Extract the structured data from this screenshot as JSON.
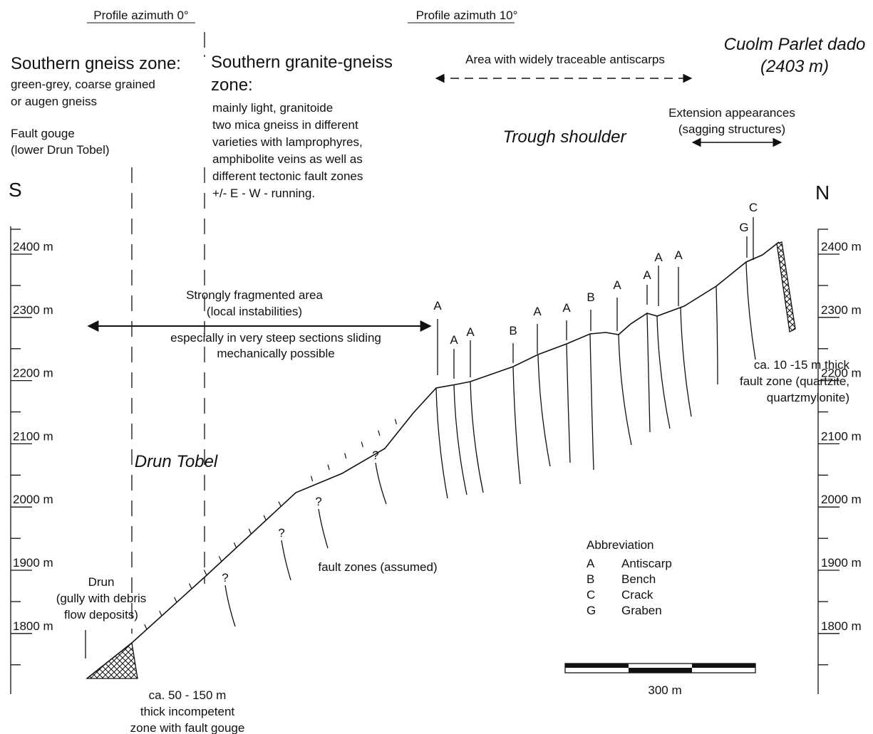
{
  "header": {
    "profile_left": "Profile azimuth 0°",
    "profile_right": "Profile azimuth 10°"
  },
  "southern_gneiss": {
    "title": "Southern gneiss zone:",
    "lines": [
      "green-grey, coarse grained",
      "or augen gneiss"
    ]
  },
  "fault_gouge": [
    "Fault gouge",
    "(lower Drun Tobel)"
  ],
  "granite_gneiss": {
    "title": [
      "Southern granite-gneiss",
      "zone:"
    ],
    "lines": [
      "mainly light, granitoide",
      "two mica gneiss in different",
      "varieties with lamprophyres,",
      "amphibolite veins as well as",
      "different tectonic fault zones",
      "+/-  E - W - running."
    ]
  },
  "antiscarps_area": "Area with widely traceable antiscarps",
  "summit": [
    "Cuolm Parlet dado",
    "(2403 m)"
  ],
  "extension": [
    "Extension appearances",
    "(sagging structures)"
  ],
  "trough_shoulder": "Trough shoulder",
  "south": "S",
  "north": "N",
  "left_axis": [
    "2400 m",
    "2300 m",
    "2200 m",
    "2100 m",
    "2000 m",
    "1900 m",
    "1800 m"
  ],
  "right_axis": [
    "2400 m",
    "2300 m",
    "2200 m",
    "2100 m",
    "2000 m",
    "1900 m",
    "1800 m"
  ],
  "fragmented": [
    "Strongly fragmented area",
    "(local instabilities)"
  ],
  "sliding": [
    "especially in very steep sections sliding",
    "mechanically possible"
  ],
  "drun_tobel": "Drun Tobel",
  "fault_zones": "fault zones (assumed)",
  "drun": [
    "Drun",
    "(gully with debris",
    "flow deposits)"
  ],
  "incompetent": [
    "ca. 50 - 150 m",
    "thick incompetent",
    "zone with fault gouge"
  ],
  "thick_fault": [
    "ca. 10 -15 m thick",
    "fault zone (quartzite,",
    "quartzmylonite)"
  ],
  "markers": [
    "A",
    "A",
    "A",
    "B",
    "A",
    "A",
    "B",
    "A",
    "A",
    "A",
    "A",
    "G",
    "C"
  ],
  "question_marks": [
    "?",
    "?",
    "?",
    "?"
  ],
  "legend": {
    "title": "Abbreviation",
    "items": [
      {
        "letter": "A",
        "text": "Antiscarp"
      },
      {
        "letter": "B",
        "text": "Bench"
      },
      {
        "letter": "C",
        "text": "Crack"
      },
      {
        "letter": "G",
        "text": "Graben"
      }
    ]
  },
  "scale_bar": "300 m"
}
